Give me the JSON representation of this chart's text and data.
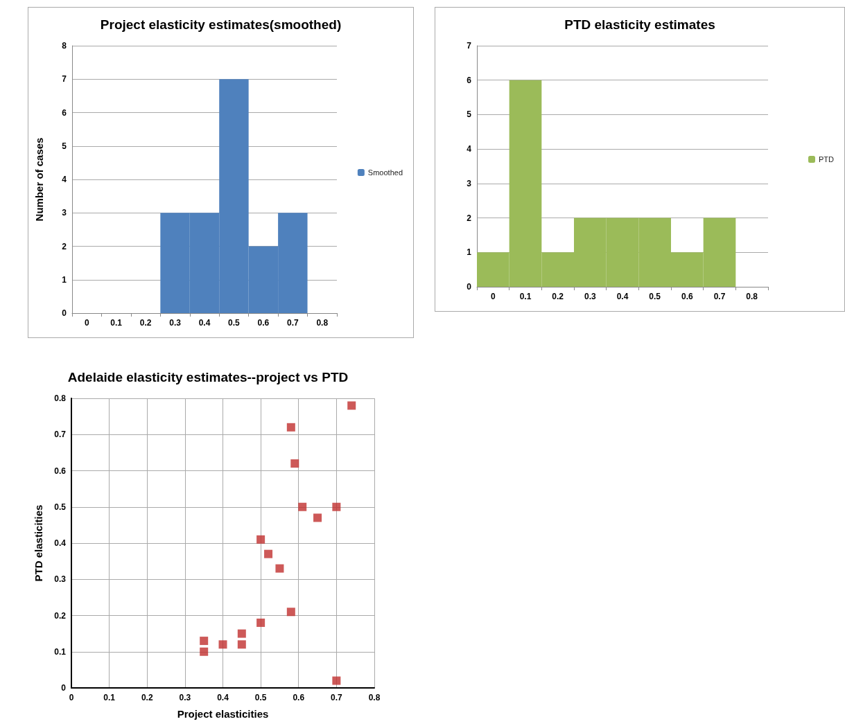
{
  "chart_data": [
    {
      "type": "bar",
      "title": "Project elasticity estimates(smoothed)",
      "ylabel": "Number of cases",
      "categories": [
        "0",
        "0.1",
        "0.2",
        "0.3",
        "0.4",
        "0.5",
        "0.6",
        "0.7",
        "0.8"
      ],
      "series": [
        {
          "name": "Smoothed",
          "color": "#4f81bd",
          "values": [
            0,
            0,
            0,
            3,
            3,
            7,
            2,
            3,
            0
          ]
        }
      ],
      "ylim": [
        0,
        8
      ],
      "yticks": [
        0,
        1,
        2,
        3,
        4,
        5,
        6,
        7,
        8
      ],
      "grid": "y",
      "legend": "right"
    },
    {
      "type": "bar",
      "title": "PTD elasticity estimates",
      "categories": [
        "0",
        "0.1",
        "0.2",
        "0.3",
        "0.4",
        "0.5",
        "0.6",
        "0.7",
        "0.8"
      ],
      "series": [
        {
          "name": "PTD",
          "color": "#9bbb59",
          "values": [
            1,
            6,
            1,
            2,
            2,
            2,
            1,
            2,
            0
          ]
        }
      ],
      "ylim": [
        0,
        7
      ],
      "yticks": [
        0,
        1,
        2,
        3,
        4,
        5,
        6,
        7
      ],
      "grid": "y",
      "legend": "right"
    },
    {
      "type": "scatter",
      "title": "Adelaide elasticity estimates--project vs PTD",
      "xlabel": "Project elasticities",
      "ylabel": "PTD elasticities",
      "x": [
        0.35,
        0.35,
        0.4,
        0.45,
        0.45,
        0.5,
        0.5,
        0.52,
        0.55,
        0.58,
        0.58,
        0.59,
        0.61,
        0.65,
        0.7,
        0.7,
        0.74
      ],
      "series": [
        {
          "color": "#c0302e",
          "values": [
            0.13,
            0.1,
            0.12,
            0.15,
            0.12,
            0.18,
            0.41,
            0.37,
            0.33,
            0.21,
            0.72,
            0.62,
            0.5,
            0.47,
            0.5,
            0.02,
            0.78
          ]
        }
      ],
      "xlim": [
        0,
        0.8
      ],
      "xticks": [
        0,
        0.1,
        0.2,
        0.3,
        0.4,
        0.5,
        0.6,
        0.7,
        0.8
      ],
      "ylim": [
        0,
        0.8
      ],
      "yticks": [
        0,
        0.1,
        0.2,
        0.3,
        0.4,
        0.5,
        0.6,
        0.7,
        0.8
      ],
      "grid": true,
      "marker": "square"
    }
  ]
}
